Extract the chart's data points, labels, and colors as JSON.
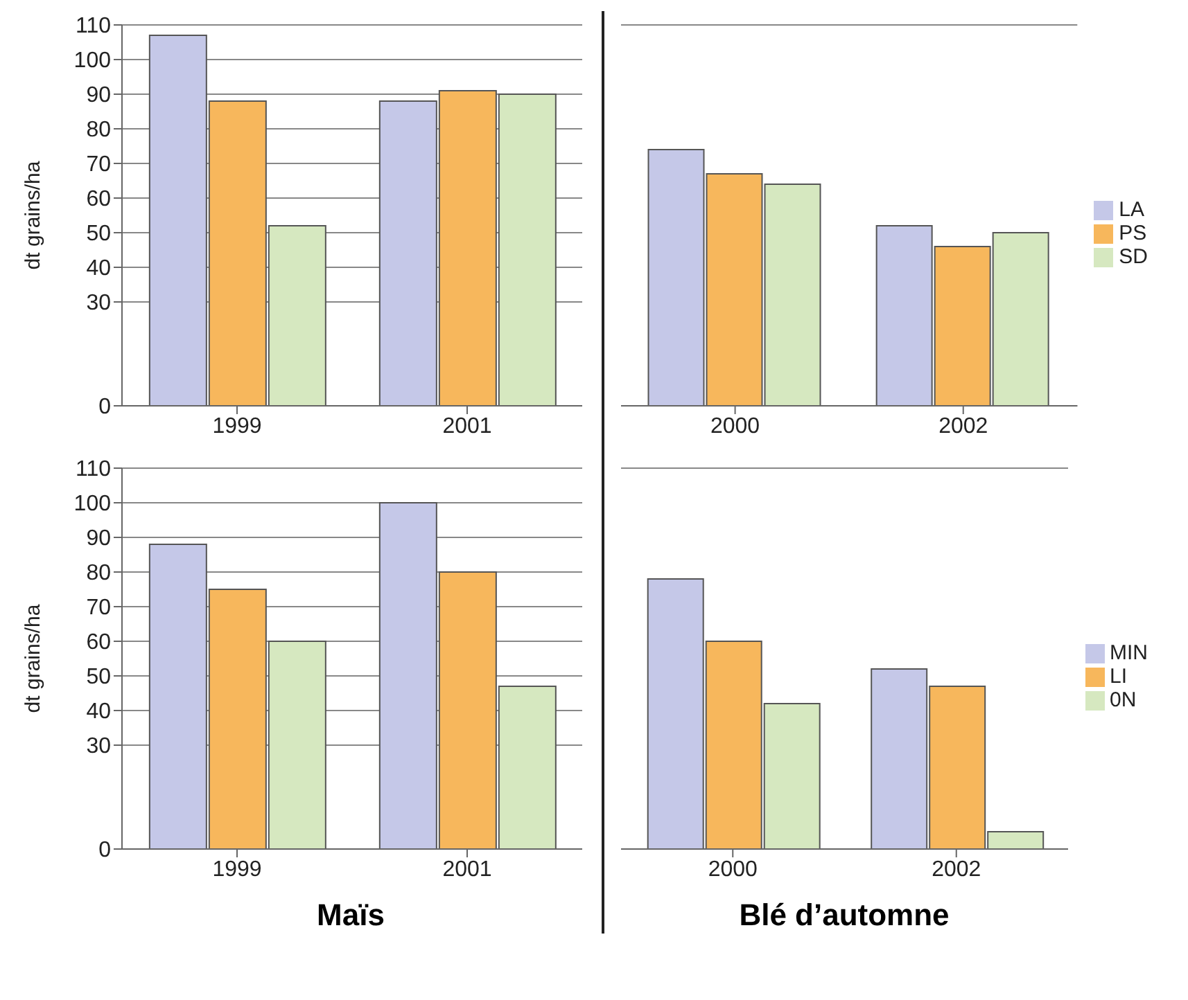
{
  "chart_data": [
    {
      "type": "bar",
      "ylabel": "dt grains/ha",
      "categories": [
        "1999",
        "2001"
      ],
      "series": [
        {
          "color": "#c5c8e8",
          "values": [
            107,
            88
          ]
        },
        {
          "color": "#f7b75c",
          "values": [
            88,
            91
          ]
        },
        {
          "color": "#d6e8c0",
          "values": [
            52,
            90
          ]
        }
      ],
      "ylim": [
        0,
        110
      ],
      "yticks": [
        0,
        30,
        40,
        50,
        60,
        70,
        80,
        90,
        100,
        110
      ],
      "grid": "y"
    },
    {
      "type": "bar",
      "categories": [
        "2000",
        "2002"
      ],
      "series": [
        {
          "name": "LA",
          "color": "#c5c8e8",
          "values": [
            74,
            52
          ]
        },
        {
          "name": "PS",
          "color": "#f7b75c",
          "values": [
            67,
            46
          ]
        },
        {
          "name": "SD",
          "color": "#d6e8c0",
          "values": [
            64,
            50
          ]
        }
      ],
      "ylim": [
        0,
        110
      ],
      "yticks": [
        0,
        30,
        40,
        50,
        60,
        70,
        80,
        90,
        100,
        110
      ],
      "grid": "y",
      "legend": "right",
      "tick_labels": "x"
    },
    {
      "type": "bar",
      "ylabel": "dt grains/ha",
      "categories": [
        "1999",
        "2001"
      ],
      "series": [
        {
          "color": "#c5c8e8",
          "values": [
            88,
            100
          ]
        },
        {
          "color": "#f7b75c",
          "values": [
            75,
            80
          ]
        },
        {
          "color": "#d6e8c0",
          "values": [
            60,
            47
          ]
        }
      ],
      "ylim": [
        0,
        110
      ],
      "yticks": [
        0,
        30,
        40,
        50,
        60,
        70,
        80,
        90,
        100,
        110
      ],
      "grid": "y",
      "annotations": [
        "Maïs"
      ]
    },
    {
      "type": "bar",
      "categories": [
        "2000",
        "2002"
      ],
      "series": [
        {
          "name": "MIN",
          "color": "#c5c8e8",
          "values": [
            78,
            52
          ]
        },
        {
          "name": "LI",
          "color": "#f7b75c",
          "values": [
            60,
            47
          ]
        },
        {
          "name": "0N",
          "color": "#d6e8c0",
          "values": [
            42,
            5
          ]
        }
      ],
      "ylim": [
        0,
        110
      ],
      "yticks": [
        0,
        30,
        40,
        50,
        60,
        70,
        80,
        90,
        100,
        110
      ],
      "grid": "y",
      "legend": "right",
      "tick_labels": "x",
      "annotations": [
        "Blé d’automne"
      ]
    }
  ]
}
